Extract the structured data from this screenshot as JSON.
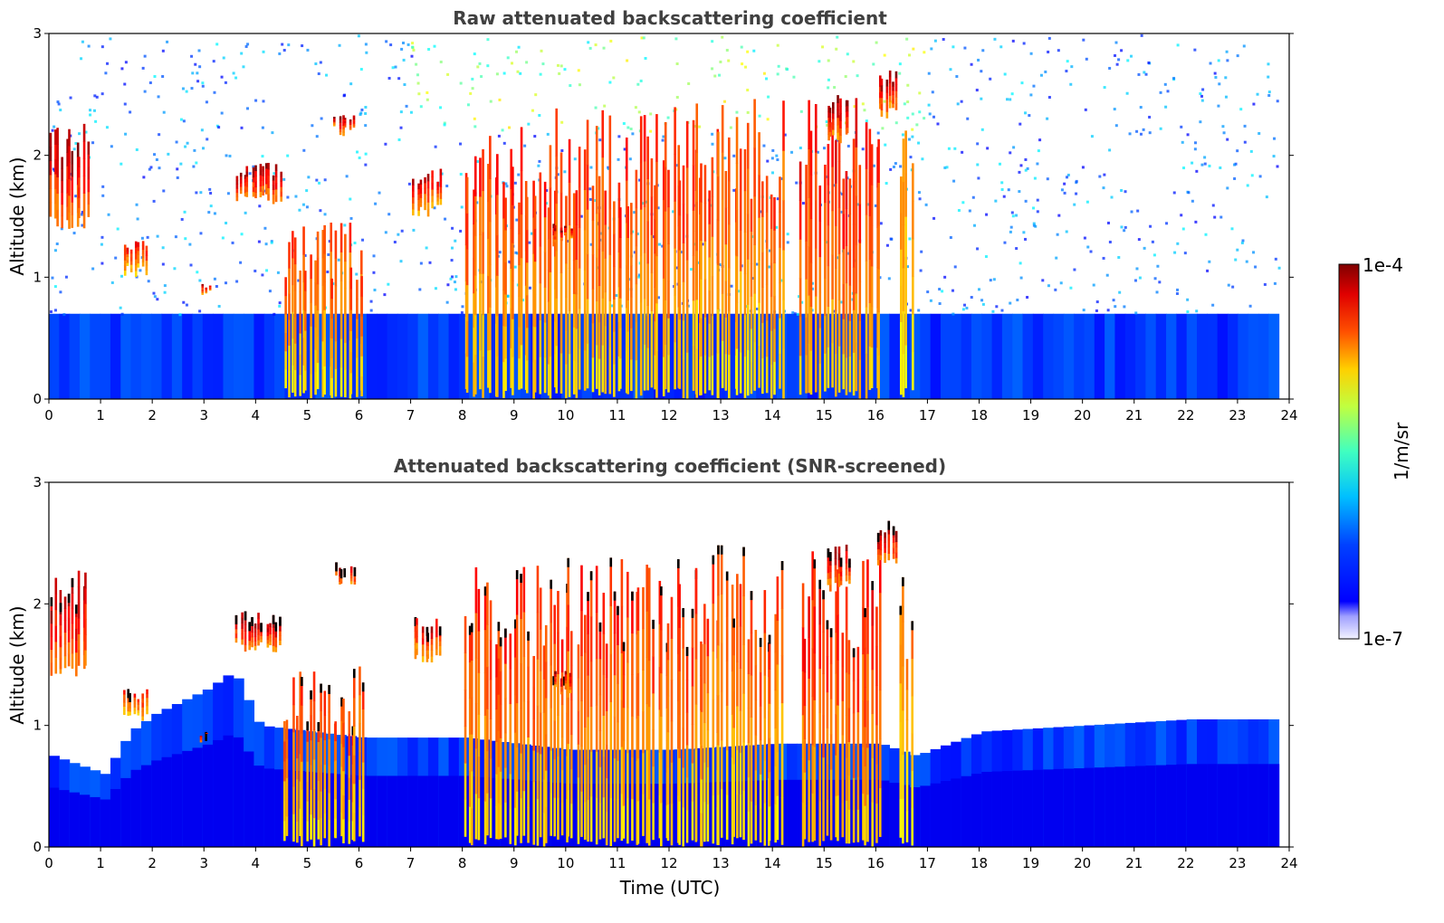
{
  "chart_data": [
    {
      "type": "heatmap",
      "title": "Raw attenuated backscattering coefficient",
      "xlabel": "",
      "ylabel": "Altitude (km)",
      "xlim": [
        0,
        24
      ],
      "ylim": [
        0,
        3
      ],
      "xticks": [
        "0",
        "1",
        "2",
        "3",
        "4",
        "5",
        "6",
        "7",
        "8",
        "9",
        "10",
        "11",
        "12",
        "13",
        "14",
        "15",
        "16",
        "17",
        "18",
        "19",
        "20",
        "21",
        "22",
        "23",
        "24"
      ],
      "yticks": [
        "0",
        "1",
        "2",
        "3"
      ],
      "data_end_time": 23.8,
      "boundary_layer_top_km": 0.7,
      "cloud_features": [
        {
          "t_start": 0.0,
          "t_end": 0.75,
          "z_base": 1.4,
          "z_top": 2.3,
          "intensity": 1.0
        },
        {
          "t_start": 1.4,
          "t_end": 1.9,
          "z_base": 1.0,
          "z_top": 1.3,
          "intensity": 0.8
        },
        {
          "t_start": 2.9,
          "t_end": 3.1,
          "z_base": 0.85,
          "z_top": 0.95,
          "intensity": 0.9
        },
        {
          "t_start": 3.6,
          "t_end": 4.5,
          "z_base": 1.6,
          "z_top": 1.95,
          "intensity": 1.0
        },
        {
          "t_start": 4.5,
          "t_end": 6.1,
          "z_base": 0.0,
          "z_top": 1.5,
          "intensity": 0.7
        },
        {
          "t_start": 5.5,
          "t_end": 5.9,
          "z_base": 2.15,
          "z_top": 2.35,
          "intensity": 1.0
        },
        {
          "t_start": 7.0,
          "t_end": 7.6,
          "z_base": 1.5,
          "z_top": 1.9,
          "intensity": 0.9
        },
        {
          "t_start": 8.0,
          "t_end": 12.6,
          "z_base": 0.0,
          "z_top": 2.4,
          "intensity": 0.75
        },
        {
          "t_start": 9.7,
          "t_end": 10.1,
          "z_base": 1.25,
          "z_top": 1.45,
          "intensity": 1.0
        },
        {
          "t_start": 12.5,
          "t_end": 14.2,
          "z_base": 0.0,
          "z_top": 2.5,
          "intensity": 0.7
        },
        {
          "t_start": 14.5,
          "t_end": 16.1,
          "z_base": 0.0,
          "z_top": 2.5,
          "intensity": 0.8
        },
        {
          "t_start": 15.0,
          "t_end": 15.5,
          "z_base": 2.1,
          "z_top": 2.5,
          "intensity": 1.0
        },
        {
          "t_start": 16.0,
          "t_end": 16.4,
          "z_base": 2.3,
          "z_top": 2.7,
          "intensity": 1.0
        },
        {
          "t_start": 16.4,
          "t_end": 16.7,
          "z_base": 0.0,
          "z_top": 2.3,
          "intensity": 0.6
        }
      ]
    },
    {
      "type": "heatmap",
      "title": "Attenuated backscattering coefficient (SNR-screened)",
      "xlabel": "Time (UTC)",
      "ylabel": "Altitude (km)",
      "xlim": [
        0,
        24
      ],
      "ylim": [
        0,
        3
      ],
      "xticks": [
        "0",
        "1",
        "2",
        "3",
        "4",
        "5",
        "6",
        "7",
        "8",
        "9",
        "10",
        "11",
        "12",
        "13",
        "14",
        "15",
        "16",
        "17",
        "18",
        "19",
        "20",
        "21",
        "22",
        "23",
        "24"
      ],
      "yticks": [
        "0",
        "1",
        "2",
        "3"
      ],
      "screened_aerosol_top_km": [
        {
          "t": 0.0,
          "z": 0.75
        },
        {
          "t": 1.0,
          "z": 0.6
        },
        {
          "t": 1.5,
          "z": 0.95
        },
        {
          "t": 2.0,
          "z": 1.1
        },
        {
          "t": 3.0,
          "z": 1.3
        },
        {
          "t": 3.5,
          "z": 1.45
        },
        {
          "t": 4.0,
          "z": 1.0
        },
        {
          "t": 6.0,
          "z": 0.9
        },
        {
          "t": 8.0,
          "z": 0.9
        },
        {
          "t": 10.0,
          "z": 0.8
        },
        {
          "t": 12.0,
          "z": 0.8
        },
        {
          "t": 14.0,
          "z": 0.85
        },
        {
          "t": 16.0,
          "z": 0.85
        },
        {
          "t": 16.7,
          "z": 0.75
        },
        {
          "t": 18.0,
          "z": 0.95
        },
        {
          "t": 20.0,
          "z": 1.0
        },
        {
          "t": 22.0,
          "z": 1.05
        },
        {
          "t": 23.8,
          "z": 1.05
        }
      ]
    }
  ],
  "colorbar": {
    "label": "1/m/sr",
    "max_label": "1e-4",
    "min_label": "1e-7",
    "colormap": "jet",
    "scale": "log",
    "range": [
      1e-07,
      0.0001
    ]
  }
}
